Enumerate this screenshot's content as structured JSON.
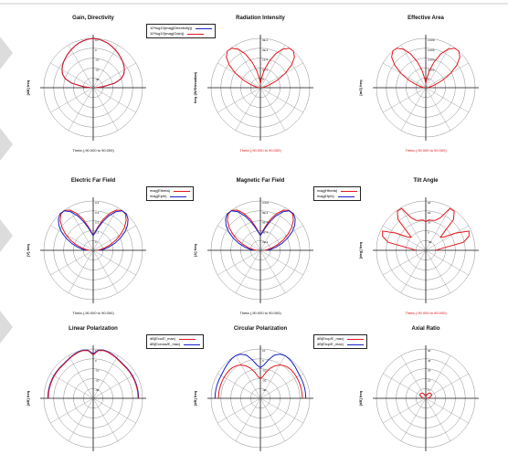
{
  "colors": {
    "red": "#e4161c",
    "blue": "#1822c8",
    "grid": "#8c8c8c",
    "axis": "#111111",
    "text": "#111111",
    "red_text": "#e4161c"
  },
  "panels": [
    {
      "title": "Gain, Directivity",
      "ylabel": "[dB] freq",
      "xlabel": "Theta (-90.000 to 90.000)",
      "xlabel_color": "text",
      "rings": 5,
      "ring_labels": [
        "10",
        "0",
        "-10",
        "-20",
        "-30"
      ],
      "legend": [
        {
          "text": "10*log10(mag(Directivity))",
          "color": "blue"
        },
        {
          "text": "10*log10(mag(Gain))",
          "color": "red"
        }
      ],
      "series": [
        {
          "color": "blue",
          "r": [
            1.0,
            0.99,
            0.97,
            0.95,
            0.92,
            0.89,
            0.86,
            0.83,
            0.8,
            0.77,
            0.73,
            0.68,
            0.6,
            0.45,
            0.2,
            0.05
          ]
        },
        {
          "color": "red",
          "r": [
            1.0,
            0.99,
            0.97,
            0.95,
            0.92,
            0.89,
            0.86,
            0.83,
            0.8,
            0.77,
            0.73,
            0.68,
            0.6,
            0.45,
            0.2,
            0.05
          ]
        }
      ]
    },
    {
      "title": "Radiation Intensity",
      "ylabel": "freq (W/Steradian)",
      "xlabel": "Theta (-90.000 to 90.000)",
      "xlabel_color": "red_text",
      "rings": 5,
      "ring_labels": [
        "3E-4",
        "2E-4",
        "1E-4",
        "5E-5",
        "0"
      ],
      "legend": [],
      "series": [
        {
          "color": "red",
          "r": [
            0.08,
            0.18,
            0.35,
            0.55,
            0.75,
            0.9,
            0.99,
            1.0,
            0.93,
            0.78,
            0.58,
            0.38,
            0.2,
            0.1,
            0.05,
            0.02
          ]
        }
      ]
    },
    {
      "title": "Effective Area",
      "ylabel": "[m2] freq",
      "xlabel": "Theta (-90.000 to 90.000)",
      "xlabel_color": "red_text",
      "rings": 5,
      "ring_labels": [
        "0.008",
        "0.006",
        "0.004",
        "0.002",
        "0"
      ],
      "legend": [],
      "series": [
        {
          "color": "red",
          "r": [
            0.08,
            0.18,
            0.35,
            0.55,
            0.75,
            0.9,
            0.99,
            1.0,
            0.93,
            0.78,
            0.58,
            0.38,
            0.2,
            0.1,
            0.05,
            0.02
          ]
        }
      ]
    },
    {
      "title": "Electric Far Field",
      "ylabel": "[V] freq",
      "xlabel": "Theta (-90.000 to 90.000)",
      "xlabel_color": "text",
      "rings": 5,
      "ring_labels": [
        "0.4",
        "0.3",
        "0.2",
        "0.1",
        "0"
      ],
      "legend": [
        {
          "text": "mag(Etheta)",
          "color": "red"
        },
        {
          "text": "mag(Ephi)",
          "color": "blue"
        }
      ],
      "series": [
        {
          "color": "red",
          "r": [
            0.3,
            0.38,
            0.5,
            0.66,
            0.82,
            0.94,
            1.0,
            0.98,
            0.9,
            0.78,
            0.64,
            0.5,
            0.36,
            0.24,
            0.14,
            0.08
          ]
        },
        {
          "color": "blue",
          "r": [
            0.3,
            0.36,
            0.46,
            0.6,
            0.76,
            0.9,
            0.99,
            1.0,
            0.95,
            0.86,
            0.74,
            0.6,
            0.46,
            0.33,
            0.22,
            0.15
          ]
        }
      ]
    },
    {
      "title": "Magnetic Far Field",
      "ylabel": "[A] freq",
      "xlabel": "Theta (-90.000 to 90.000)",
      "xlabel_color": "text",
      "rings": 5,
      "ring_labels": [
        "0.001",
        "8E-4",
        "6E-4",
        "4E-4",
        "2E-4"
      ],
      "legend": [
        {
          "text": "mag(Htheta)",
          "color": "red"
        },
        {
          "text": "mag(Hphi)",
          "color": "blue"
        }
      ],
      "series": [
        {
          "color": "red",
          "r": [
            0.3,
            0.38,
            0.5,
            0.66,
            0.82,
            0.94,
            1.0,
            0.98,
            0.9,
            0.78,
            0.64,
            0.5,
            0.36,
            0.24,
            0.14,
            0.08
          ]
        },
        {
          "color": "blue",
          "r": [
            0.3,
            0.36,
            0.46,
            0.6,
            0.76,
            0.9,
            0.99,
            1.0,
            0.95,
            0.86,
            0.74,
            0.6,
            0.46,
            0.33,
            0.22,
            0.15
          ]
        }
      ]
    },
    {
      "title": "Tilt Angle",
      "ylabel": "[deg] freq",
      "xlabel": "Theta (-90.000 to 90.000)",
      "xlabel_color": "red_text",
      "rings": 5,
      "ring_labels": [
        "90",
        "60",
        "30",
        "0",
        "-30"
      ],
      "legend": [],
      "series": [
        {
          "color": "red",
          "r": [
            0.58,
            0.62,
            0.62,
            0.64,
            0.72,
            0.98,
            0.98,
            0.84,
            0.4,
            0.46,
            0.7,
            0.96,
            0.92,
            0.78,
            0.3,
            0.2
          ]
        }
      ]
    },
    {
      "title": "Linear Polarization",
      "ylabel": "[dB] freq",
      "xlabel": "",
      "xlabel_color": "text",
      "rings": 5,
      "ring_labels": [
        "10",
        "0",
        "-10",
        "-20",
        "-30"
      ],
      "legend": [
        {
          "text": "dB(Eco/E_max)",
          "color": "red"
        },
        {
          "text": "dB(Ecross/E_max)",
          "color": "blue"
        }
      ],
      "series": [
        {
          "color": "blue",
          "r": [
            0.9,
            0.98,
            1.0,
            0.99,
            0.97,
            0.95,
            0.93,
            0.92,
            0.92,
            0.92,
            0.92,
            0.92,
            0.92,
            0.92,
            0.92,
            0.92
          ]
        },
        {
          "color": "red",
          "r": [
            0.88,
            0.97,
            0.99,
            0.98,
            0.96,
            0.94,
            0.92,
            0.91,
            0.91,
            0.91,
            0.91,
            0.91,
            0.91,
            0.91,
            0.91,
            0.91
          ]
        }
      ]
    },
    {
      "title": "Circular Polarization",
      "ylabel": "[dB] freq",
      "xlabel": "",
      "xlabel_color": "text",
      "rings": 5,
      "ring_labels": [
        "10",
        "0",
        "-10",
        "-20",
        "-30"
      ],
      "legend": [
        {
          "text": "dB(Ercp/E_max)",
          "color": "red"
        },
        {
          "text": "dB(Elcp/E_max)",
          "color": "blue"
        }
      ],
      "series": [
        {
          "color": "blue",
          "r": [
            0.62,
            0.68,
            0.8,
            0.92,
            0.98,
            1.0,
            0.99,
            0.97,
            0.95,
            0.93,
            0.92,
            0.92,
            0.92,
            0.92,
            0.92,
            0.92
          ]
        },
        {
          "color": "red",
          "r": [
            0.4,
            0.44,
            0.54,
            0.64,
            0.72,
            0.78,
            0.82,
            0.84,
            0.85,
            0.85,
            0.85,
            0.85,
            0.85,
            0.85,
            0.85,
            0.85
          ]
        }
      ]
    },
    {
      "title": "Axial Ratio",
      "ylabel": "[dB] freq",
      "xlabel": "",
      "xlabel_color": "text",
      "rings": 5,
      "ring_labels": [
        "60",
        "45",
        "30",
        "15",
        "0"
      ],
      "legend": [],
      "series": [
        {
          "color": "red",
          "r": [
            0.04,
            0.05,
            0.06,
            0.08,
            0.1,
            0.12,
            0.13,
            0.14,
            0.14,
            0.14,
            0.14,
            0.12,
            0.1,
            0.08,
            0.06,
            0.04
          ]
        }
      ]
    }
  ],
  "chart_data": [
    {
      "type": "polar",
      "title": "Gain, Directivity",
      "ylabel": "[dB] freq",
      "xlabel": "Theta (-90.000 to 90.000)",
      "series": [
        {
          "name": "10*log10(mag(Directivity))",
          "values": "near-cardioid, max ~7 dB at top"
        },
        {
          "name": "10*log10(mag(Gain))",
          "values": "overlaps directivity"
        }
      ]
    },
    {
      "type": "polar",
      "title": "Radiation Intensity",
      "ylabel": "freq (W/Steradian)",
      "xlabel": "Theta (-90.000 to 90.000)"
    },
    {
      "type": "polar",
      "title": "Effective Area",
      "ylabel": "[m2] freq",
      "xlabel": "Theta (-90.000 to 90.000)"
    },
    {
      "type": "polar",
      "title": "Electric Far Field",
      "ylabel": "[V] freq",
      "xlabel": "Theta (-90.000 to 90.000)",
      "series": [
        {
          "name": "mag(Etheta)"
        },
        {
          "name": "mag(Ephi)"
        }
      ]
    },
    {
      "type": "polar",
      "title": "Magnetic Far Field",
      "ylabel": "[A] freq",
      "xlabel": "Theta (-90.000 to 90.000)",
      "series": [
        {
          "name": "mag(Htheta)"
        },
        {
          "name": "mag(Hphi)"
        }
      ]
    },
    {
      "type": "polar",
      "title": "Tilt Angle",
      "ylabel": "[deg] freq",
      "xlabel": "Theta (-90.000 to 90.000)"
    },
    {
      "type": "polar",
      "title": "Linear Polarization",
      "ylabel": "[dB] freq",
      "series": [
        {
          "name": "dB(Eco/E_max)"
        },
        {
          "name": "dB(Ecross/E_max)"
        }
      ]
    },
    {
      "type": "polar",
      "title": "Circular Polarization",
      "ylabel": "[dB] freq",
      "series": [
        {
          "name": "dB(Ercp/E_max)"
        },
        {
          "name": "dB(Elcp/E_max)"
        }
      ]
    },
    {
      "type": "polar",
      "title": "Axial Ratio",
      "ylabel": "[dB] freq"
    }
  ]
}
